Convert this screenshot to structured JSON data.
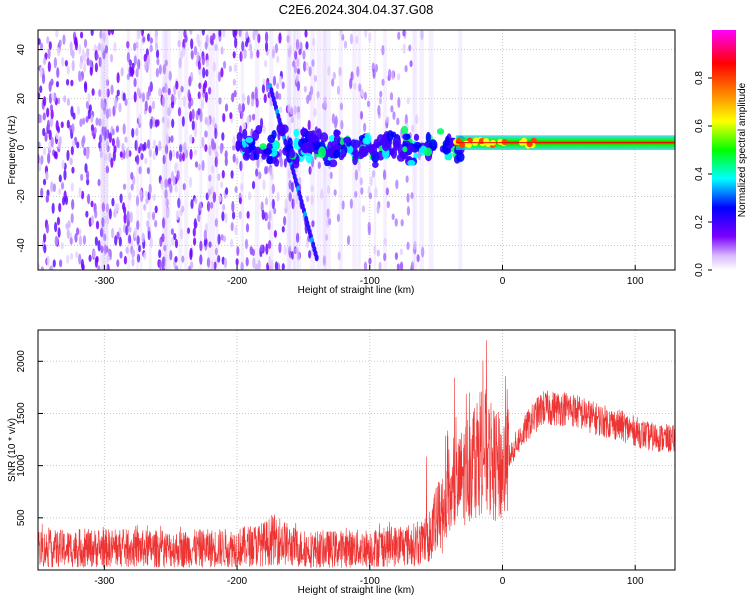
{
  "title": "C2E6.2024.304.04.37.G08",
  "chart_data": [
    {
      "type": "heatmap",
      "title": "C2E6.2024.304.04.37.G08",
      "xlabel": "Height of straight line (km)",
      "ylabel": "Frequency (Hz)",
      "xlim": [
        -350,
        130
      ],
      "ylim": [
        -50,
        48
      ],
      "xticks": [
        -300,
        -200,
        -100,
        0,
        100
      ],
      "yticks": [
        -40,
        -20,
        0,
        20,
        40
      ],
      "colorbar": {
        "label": "Normalized spectral amplitude",
        "range": [
          0,
          1
        ],
        "ticks": [
          0.0,
          0.2,
          0.4,
          0.6,
          0.8
        ],
        "colors": [
          "#ffffff",
          "#7a00ff",
          "#0000ff",
          "#00ffff",
          "#00ff00",
          "#ffff00",
          "#ff8000",
          "#ff0000",
          "#ff00ff"
        ]
      },
      "features": [
        {
          "name": "diffuse noise",
          "x_range": [
            -350,
            -60
          ],
          "amplitude": 0.12
        },
        {
          "name": "descending trace",
          "x": [
            -175,
            -140
          ],
          "y": [
            25,
            -45
          ],
          "amplitude": 0.35
        },
        {
          "name": "narrow band",
          "x_range": [
            -35,
            130
          ],
          "y": 2,
          "amplitude": 0.6
        }
      ]
    },
    {
      "type": "line",
      "xlabel": "Height of straight line (km)",
      "ylabel": "SNR (10 * v/v)",
      "xlim": [
        -350,
        130
      ],
      "ylim": [
        0,
        2300
      ],
      "xticks": [
        -300,
        -200,
        -100,
        0,
        100
      ],
      "yticks": [
        500,
        1000,
        1500,
        2000
      ],
      "grid": true,
      "series": [
        {
          "color": "#ee3333",
          "x": [
            -350,
            -300,
            -250,
            -200,
            -180,
            -170,
            -160,
            -150,
            -130,
            -100,
            -80,
            -60,
            -40,
            -30,
            -20,
            -15,
            -10,
            0,
            10,
            20,
            30,
            50,
            70,
            90,
            110,
            130
          ],
          "y": [
            200,
            210,
            200,
            215,
            250,
            300,
            230,
            200,
            200,
            210,
            230,
            250,
            650,
            900,
            1100,
            1200,
            1050,
            950,
            1200,
            1400,
            1550,
            1550,
            1450,
            1380,
            1280,
            1250
          ]
        }
      ]
    }
  ]
}
